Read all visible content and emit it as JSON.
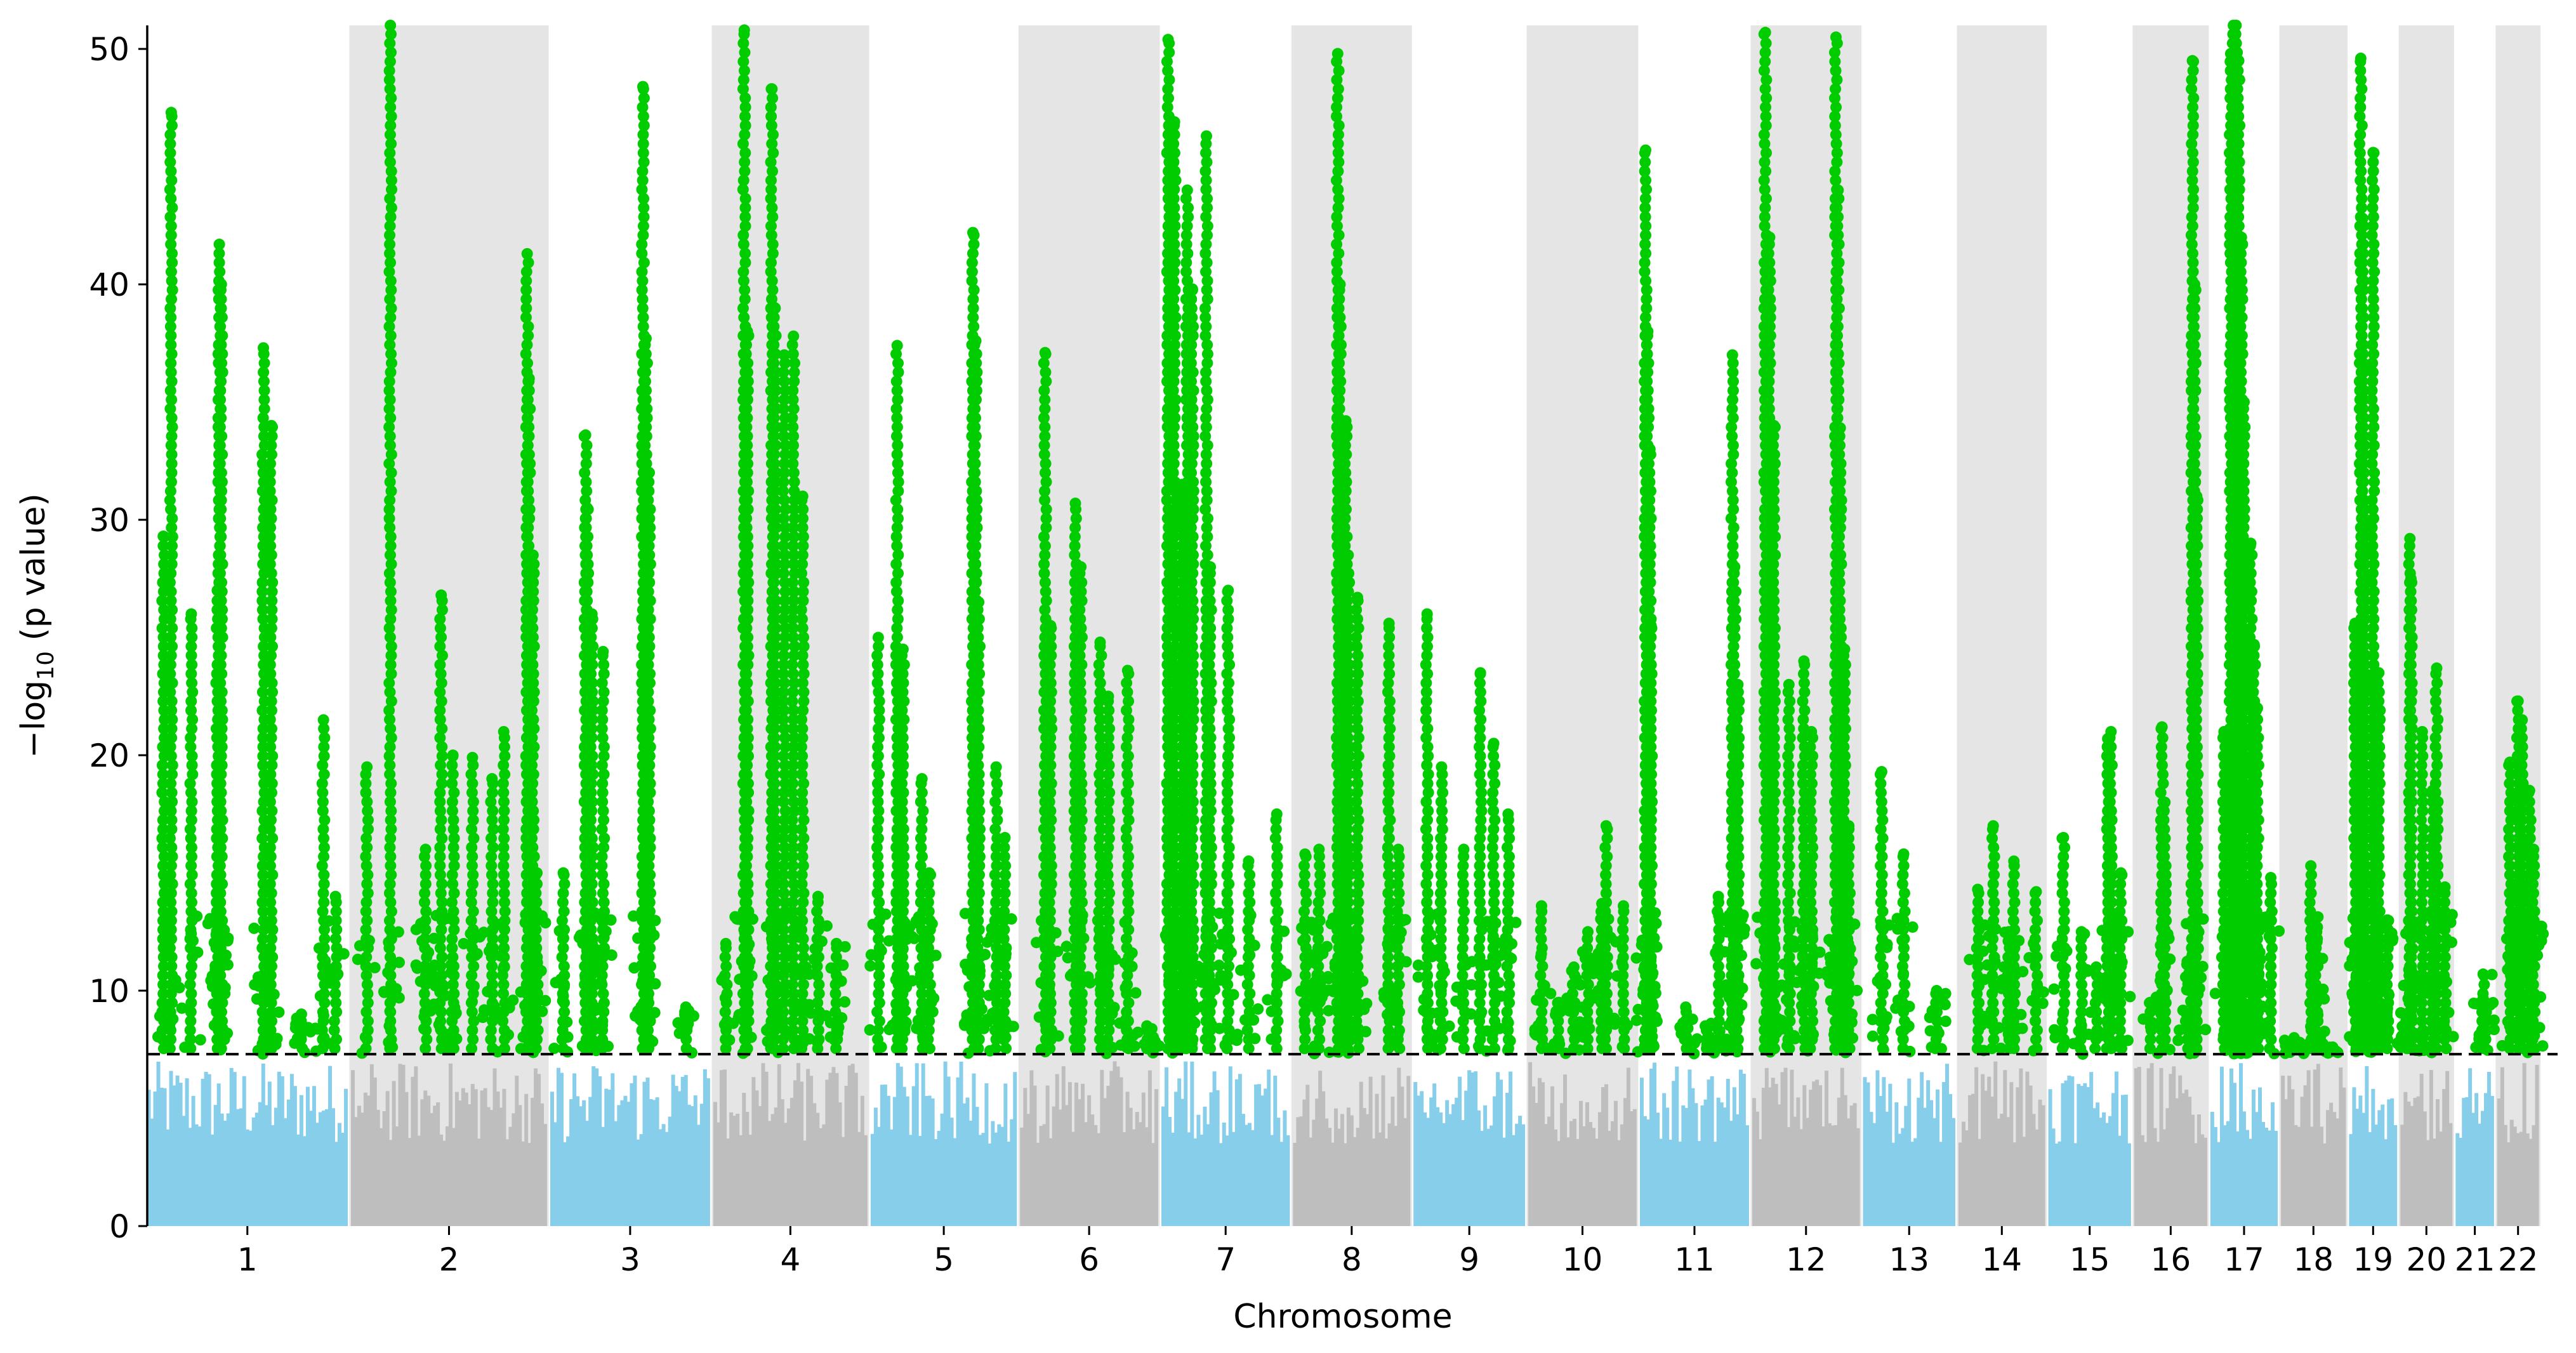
{
  "chart_data": {
    "type": "scatter",
    "subtype": "manhattan",
    "title": "",
    "xlabel": "Chromosome",
    "ylabel": "−log10 (p value)",
    "ylabel_parts": {
      "prefix": "−log",
      "subscript": "10",
      "suffix": " (p value)"
    },
    "ylim": [
      0,
      51
    ],
    "yticks": [
      0,
      10,
      20,
      30,
      40,
      50
    ],
    "grid": false,
    "legend": "none",
    "significance_threshold": 7.3,
    "colors": {
      "significant": "#00cc00",
      "odd_chromosome": "#87ceeb",
      "even_chromosome": "#bebebe",
      "even_band": "#e5e5e5",
      "threshold_line": "#000000"
    },
    "chromosomes": [
      {
        "label": "1",
        "length": 249,
        "peaks": [
          {
            "pos": 0.12,
            "val": 47.3
          },
          {
            "pos": 0.08,
            "val": 29.3
          },
          {
            "pos": 0.22,
            "val": 26
          },
          {
            "pos": 0.36,
            "val": 41.7
          },
          {
            "pos": 0.37,
            "val": 40
          },
          {
            "pos": 0.35,
            "val": 27
          },
          {
            "pos": 0.58,
            "val": 37.3
          },
          {
            "pos": 0.62,
            "val": 34
          },
          {
            "pos": 0.77,
            "val": 9
          },
          {
            "pos": 0.88,
            "val": 21.5
          },
          {
            "pos": 0.94,
            "val": 14
          }
        ]
      },
      {
        "label": "2",
        "length": 243,
        "peaks": [
          {
            "pos": 0.2,
            "val": 51
          },
          {
            "pos": 0.08,
            "val": 19.5
          },
          {
            "pos": 0.38,
            "val": 16
          },
          {
            "pos": 0.46,
            "val": 26.8
          },
          {
            "pos": 0.52,
            "val": 20
          },
          {
            "pos": 0.62,
            "val": 19.9
          },
          {
            "pos": 0.72,
            "val": 19
          },
          {
            "pos": 0.78,
            "val": 21
          },
          {
            "pos": 0.9,
            "val": 41.3
          },
          {
            "pos": 0.91,
            "val": 36
          },
          {
            "pos": 0.93,
            "val": 28.5
          },
          {
            "pos": 0.95,
            "val": 15
          }
        ]
      },
      {
        "label": "3",
        "length": 198,
        "peaks": [
          {
            "pos": 0.08,
            "val": 15
          },
          {
            "pos": 0.22,
            "val": 33.6
          },
          {
            "pos": 0.23,
            "val": 30.5
          },
          {
            "pos": 0.26,
            "val": 26
          },
          {
            "pos": 0.33,
            "val": 24.4
          },
          {
            "pos": 0.58,
            "val": 48.4
          },
          {
            "pos": 0.6,
            "val": 37.7
          },
          {
            "pos": 0.62,
            "val": 32
          },
          {
            "pos": 0.85,
            "val": 9.3
          }
        ]
      },
      {
        "label": "4",
        "length": 191,
        "peaks": [
          {
            "pos": 0.08,
            "val": 12
          },
          {
            "pos": 0.2,
            "val": 50.8
          },
          {
            "pos": 0.22,
            "val": 38
          },
          {
            "pos": 0.38,
            "val": 48.3
          },
          {
            "pos": 0.4,
            "val": 39
          },
          {
            "pos": 0.46,
            "val": 37
          },
          {
            "pos": 0.52,
            "val": 37.8
          },
          {
            "pos": 0.58,
            "val": 31
          },
          {
            "pos": 0.68,
            "val": 14
          },
          {
            "pos": 0.8,
            "val": 12
          }
        ]
      },
      {
        "label": "5",
        "length": 181,
        "peaks": [
          {
            "pos": 0.05,
            "val": 25
          },
          {
            "pos": 0.18,
            "val": 37.4
          },
          {
            "pos": 0.22,
            "val": 24.5
          },
          {
            "pos": 0.35,
            "val": 19
          },
          {
            "pos": 0.4,
            "val": 15
          },
          {
            "pos": 0.7,
            "val": 42.2
          },
          {
            "pos": 0.72,
            "val": 37.6
          },
          {
            "pos": 0.74,
            "val": 26.5
          },
          {
            "pos": 0.86,
            "val": 19.5
          },
          {
            "pos": 0.92,
            "val": 16.5
          }
        ]
      },
      {
        "label": "6",
        "length": 171,
        "peaks": [
          {
            "pos": 0.18,
            "val": 37.1
          },
          {
            "pos": 0.22,
            "val": 25.5
          },
          {
            "pos": 0.4,
            "val": 30.7
          },
          {
            "pos": 0.44,
            "val": 28
          },
          {
            "pos": 0.58,
            "val": 24.8
          },
          {
            "pos": 0.64,
            "val": 22.5
          },
          {
            "pos": 0.78,
            "val": 23.6
          },
          {
            "pos": 0.92,
            "val": 8.5
          }
        ]
      },
      {
        "label": "7",
        "length": 159,
        "peaks": [
          {
            "pos": 0.05,
            "val": 50.4
          },
          {
            "pos": 0.1,
            "val": 46.9
          },
          {
            "pos": 0.16,
            "val": 31.5
          },
          {
            "pos": 0.2,
            "val": 44
          },
          {
            "pos": 0.24,
            "val": 39.8
          },
          {
            "pos": 0.35,
            "val": 46.3
          },
          {
            "pos": 0.38,
            "val": 28
          },
          {
            "pos": 0.52,
            "val": 27
          },
          {
            "pos": 0.68,
            "val": 15.5
          },
          {
            "pos": 0.9,
            "val": 17.5
          }
        ]
      },
      {
        "label": "8",
        "length": 145,
        "peaks": [
          {
            "pos": 0.1,
            "val": 15.8
          },
          {
            "pos": 0.22,
            "val": 16
          },
          {
            "pos": 0.38,
            "val": 49.8
          },
          {
            "pos": 0.4,
            "val": 40
          },
          {
            "pos": 0.45,
            "val": 34.2
          },
          {
            "pos": 0.47,
            "val": 28.5
          },
          {
            "pos": 0.55,
            "val": 26.7
          },
          {
            "pos": 0.82,
            "val": 25.6
          },
          {
            "pos": 0.9,
            "val": 16
          }
        ]
      },
      {
        "label": "9",
        "length": 138,
        "peaks": [
          {
            "pos": 0.12,
            "val": 26
          },
          {
            "pos": 0.25,
            "val": 19.5
          },
          {
            "pos": 0.45,
            "val": 16
          },
          {
            "pos": 0.6,
            "val": 23.5
          },
          {
            "pos": 0.72,
            "val": 20.5
          },
          {
            "pos": 0.85,
            "val": 17.5
          }
        ]
      },
      {
        "label": "10",
        "length": 134,
        "peaks": [
          {
            "pos": 0.12,
            "val": 13.6
          },
          {
            "pos": 0.28,
            "val": 9.5
          },
          {
            "pos": 0.42,
            "val": 11
          },
          {
            "pos": 0.55,
            "val": 12.5
          },
          {
            "pos": 0.68,
            "val": 13.7
          },
          {
            "pos": 0.72,
            "val": 17
          },
          {
            "pos": 0.88,
            "val": 13.6
          }
        ]
      },
      {
        "label": "11",
        "length": 135,
        "peaks": [
          {
            "pos": 0.05,
            "val": 45.7
          },
          {
            "pos": 0.07,
            "val": 38
          },
          {
            "pos": 0.09,
            "val": 33
          },
          {
            "pos": 0.1,
            "val": 25.5
          },
          {
            "pos": 0.42,
            "val": 9.3
          },
          {
            "pos": 0.6,
            "val": 8.5
          },
          {
            "pos": 0.72,
            "val": 14
          },
          {
            "pos": 0.85,
            "val": 37
          },
          {
            "pos": 0.87,
            "val": 28
          },
          {
            "pos": 0.9,
            "val": 23
          }
        ]
      },
      {
        "label": "12",
        "length": 133,
        "peaks": [
          {
            "pos": 0.12,
            "val": 50.7
          },
          {
            "pos": 0.16,
            "val": 42
          },
          {
            "pos": 0.2,
            "val": 34
          },
          {
            "pos": 0.34,
            "val": 23
          },
          {
            "pos": 0.48,
            "val": 24
          },
          {
            "pos": 0.55,
            "val": 21
          },
          {
            "pos": 0.78,
            "val": 50.5
          },
          {
            "pos": 0.8,
            "val": 44
          },
          {
            "pos": 0.82,
            "val": 33.9
          },
          {
            "pos": 0.86,
            "val": 24.5
          },
          {
            "pos": 0.9,
            "val": 17
          }
        ]
      },
      {
        "label": "13",
        "length": 114,
        "peaks": [
          {
            "pos": 0.2,
            "val": 19.3
          },
          {
            "pos": 0.44,
            "val": 15.8
          },
          {
            "pos": 0.8,
            "val": 10
          }
        ]
      },
      {
        "label": "14",
        "length": 107,
        "peaks": [
          {
            "pos": 0.22,
            "val": 14.3
          },
          {
            "pos": 0.4,
            "val": 17
          },
          {
            "pos": 0.58,
            "val": 12.5
          },
          {
            "pos": 0.64,
            "val": 15.5
          },
          {
            "pos": 0.9,
            "val": 14.2
          }
        ]
      },
      {
        "label": "15",
        "length": 102,
        "peaks": [
          {
            "pos": 0.18,
            "val": 16.5
          },
          {
            "pos": 0.4,
            "val": 12.5
          },
          {
            "pos": 0.58,
            "val": 11
          },
          {
            "pos": 0.72,
            "val": 20.7
          },
          {
            "pos": 0.76,
            "val": 21
          },
          {
            "pos": 0.88,
            "val": 15
          }
        ]
      },
      {
        "label": "16",
        "length": 90,
        "peaks": [
          {
            "pos": 0.22,
            "val": 9.5
          },
          {
            "pos": 0.38,
            "val": 21.2
          },
          {
            "pos": 0.42,
            "val": 18
          },
          {
            "pos": 0.72,
            "val": 9
          },
          {
            "pos": 0.8,
            "val": 49.5
          },
          {
            "pos": 0.83,
            "val": 40
          },
          {
            "pos": 0.86,
            "val": 31
          }
        ]
      },
      {
        "label": "17",
        "length": 83,
        "peaks": [
          {
            "pos": 0.2,
            "val": 21
          },
          {
            "pos": 0.3,
            "val": 49.8
          },
          {
            "pos": 0.34,
            "val": 51
          },
          {
            "pos": 0.38,
            "val": 51
          },
          {
            "pos": 0.42,
            "val": 49.5
          },
          {
            "pos": 0.46,
            "val": 42
          },
          {
            "pos": 0.5,
            "val": 35
          },
          {
            "pos": 0.6,
            "val": 29
          },
          {
            "pos": 0.65,
            "val": 24.7
          },
          {
            "pos": 0.7,
            "val": 22
          },
          {
            "pos": 0.9,
            "val": 14.8
          }
        ]
      },
      {
        "label": "18",
        "length": 80,
        "peaks": [
          {
            "pos": 0.2,
            "val": 8
          },
          {
            "pos": 0.46,
            "val": 15.3
          },
          {
            "pos": 0.55,
            "val": 12.5
          },
          {
            "pos": 0.8,
            "val": 7.6
          }
        ]
      },
      {
        "label": "19",
        "length": 59,
        "peaks": [
          {
            "pos": 0.12,
            "val": 25.6
          },
          {
            "pos": 0.2,
            "val": 22
          },
          {
            "pos": 0.24,
            "val": 49.6
          },
          {
            "pos": 0.28,
            "val": 42.8
          },
          {
            "pos": 0.3,
            "val": 36.5
          },
          {
            "pos": 0.32,
            "val": 29.8
          },
          {
            "pos": 0.5,
            "val": 45.6
          },
          {
            "pos": 0.62,
            "val": 23.5
          },
          {
            "pos": 0.8,
            "val": 13
          }
        ]
      },
      {
        "label": "20",
        "length": 64,
        "peaks": [
          {
            "pos": 0.12,
            "val": 9
          },
          {
            "pos": 0.18,
            "val": 29.2
          },
          {
            "pos": 0.2,
            "val": 27.5
          },
          {
            "pos": 0.42,
            "val": 21
          },
          {
            "pos": 0.62,
            "val": 18.5
          },
          {
            "pos": 0.7,
            "val": 23.7
          },
          {
            "pos": 0.86,
            "val": 14.4
          }
        ]
      },
      {
        "label": "21",
        "length": 47,
        "peaks": [
          {
            "pos": 0.72,
            "val": 10.7
          },
          {
            "pos": 0.78,
            "val": 9.5
          }
        ]
      },
      {
        "label": "22",
        "length": 51,
        "peaks": [
          {
            "pos": 0.3,
            "val": 19.7
          },
          {
            "pos": 0.5,
            "val": 22.3
          },
          {
            "pos": 0.6,
            "val": 21.5
          },
          {
            "pos": 0.78,
            "val": 18.5
          },
          {
            "pos": 0.88,
            "val": 16
          }
        ]
      }
    ]
  }
}
